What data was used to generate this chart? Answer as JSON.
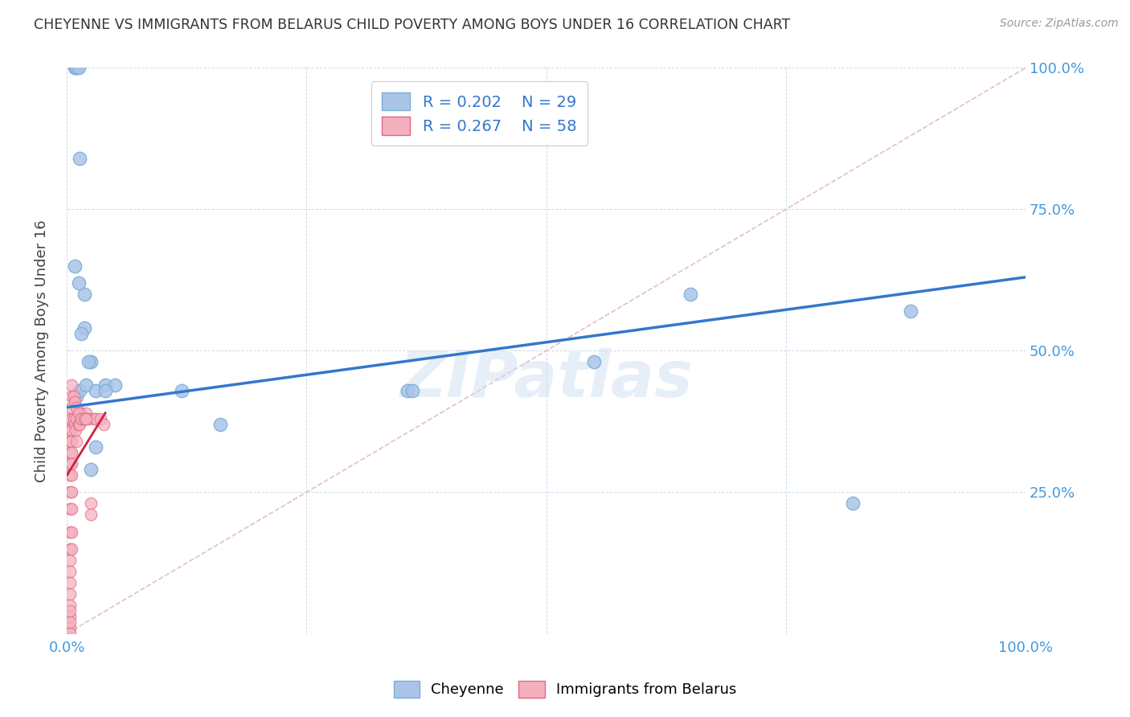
{
  "title": "CHEYENNE VS IMMIGRANTS FROM BELARUS CHILD POVERTY AMONG BOYS UNDER 16 CORRELATION CHART",
  "source": "Source: ZipAtlas.com",
  "ylabel": "Child Poverty Among Boys Under 16",
  "xlabel": "",
  "background_color": "#ffffff",
  "watermark": "ZIPatlas",
  "cheyenne_color": "#aac4e8",
  "cheyenne_edge": "#7aadd6",
  "belarus_color": "#f5b0c0",
  "belarus_edge": "#e06880",
  "cheyenne_R": 0.202,
  "cheyenne_N": 29,
  "belarus_R": 0.267,
  "belarus_N": 58,
  "cheyenne_points_x": [
    0.01,
    0.013,
    0.018,
    0.02,
    0.025,
    0.03,
    0.04,
    0.05,
    0.018,
    0.025,
    0.03,
    0.04,
    0.12,
    0.16,
    0.355,
    0.36,
    0.55,
    0.65,
    0.82,
    0.88,
    0.008,
    0.012,
    0.015,
    0.022,
    0.008,
    0.01,
    0.01,
    0.012,
    0.013
  ],
  "cheyenne_points_y": [
    0.42,
    0.43,
    0.54,
    0.44,
    0.48,
    0.43,
    0.44,
    0.44,
    0.6,
    0.29,
    0.33,
    0.43,
    0.43,
    0.37,
    0.43,
    0.43,
    0.48,
    0.6,
    0.23,
    0.57,
    0.65,
    0.62,
    0.53,
    0.48,
    1.0,
    1.0,
    1.0,
    1.0,
    0.84
  ],
  "belarus_points_x": [
    0.003,
    0.003,
    0.003,
    0.003,
    0.003,
    0.003,
    0.003,
    0.003,
    0.003,
    0.003,
    0.003,
    0.003,
    0.003,
    0.003,
    0.003,
    0.003,
    0.003,
    0.003,
    0.003,
    0.003,
    0.005,
    0.005,
    0.005,
    0.005,
    0.005,
    0.005,
    0.005,
    0.005,
    0.005,
    0.005,
    0.007,
    0.008,
    0.009,
    0.01,
    0.01,
    0.012,
    0.013,
    0.015,
    0.016,
    0.018,
    0.02,
    0.022,
    0.025,
    0.025,
    0.028,
    0.03,
    0.035,
    0.038,
    0.005,
    0.005,
    0.005,
    0.007,
    0.008,
    0.01,
    0.012,
    0.015,
    0.018,
    0.02
  ],
  "belarus_points_y": [
    0.38,
    0.36,
    0.34,
    0.32,
    0.3,
    0.28,
    0.25,
    0.22,
    0.18,
    0.15,
    0.13,
    0.11,
    0.09,
    0.07,
    0.05,
    0.03,
    0.01,
    0.0,
    0.02,
    0.04,
    0.38,
    0.36,
    0.34,
    0.32,
    0.3,
    0.28,
    0.25,
    0.22,
    0.18,
    0.15,
    0.38,
    0.37,
    0.36,
    0.38,
    0.34,
    0.37,
    0.37,
    0.39,
    0.38,
    0.38,
    0.39,
    0.38,
    0.23,
    0.21,
    0.38,
    0.38,
    0.38,
    0.37,
    0.42,
    0.4,
    0.44,
    0.42,
    0.41,
    0.4,
    0.39,
    0.38,
    0.38,
    0.38
  ],
  "cheyenne_line_x": [
    0.0,
    1.0
  ],
  "cheyenne_line_y": [
    0.4,
    0.63
  ],
  "cheyenne_line_color": "#3377cc",
  "belarus_line_x": [
    0.0,
    0.04
  ],
  "belarus_line_y": [
    0.28,
    0.39
  ],
  "belarus_line_color": "#cc2244",
  "diag_line_color": "#e0b8c0",
  "xlim": [
    0.0,
    1.0
  ],
  "ylim": [
    0.0,
    1.0
  ],
  "xticks": [
    0.0,
    0.25,
    0.5,
    0.75,
    1.0
  ],
  "yticks": [
    0.25,
    0.5,
    0.75,
    1.0
  ],
  "xticklabels_bottom": [
    "0.0%",
    "",
    "",
    "",
    "100.0%"
  ],
  "xticklabels_right": [
    "25.0%",
    "50.0%",
    "75.0%",
    "100.0%"
  ],
  "ytick_right_values": [
    0.25,
    0.5,
    0.75,
    1.0
  ],
  "ytick_right_labels": [
    "25.0%",
    "50.0%",
    "75.0%",
    "100.0%"
  ],
  "legend_R_cheyenne": "R = 0.202",
  "legend_N_cheyenne": "N = 29",
  "legend_R_belarus": "R = 0.267",
  "legend_N_belarus": "N = 58"
}
